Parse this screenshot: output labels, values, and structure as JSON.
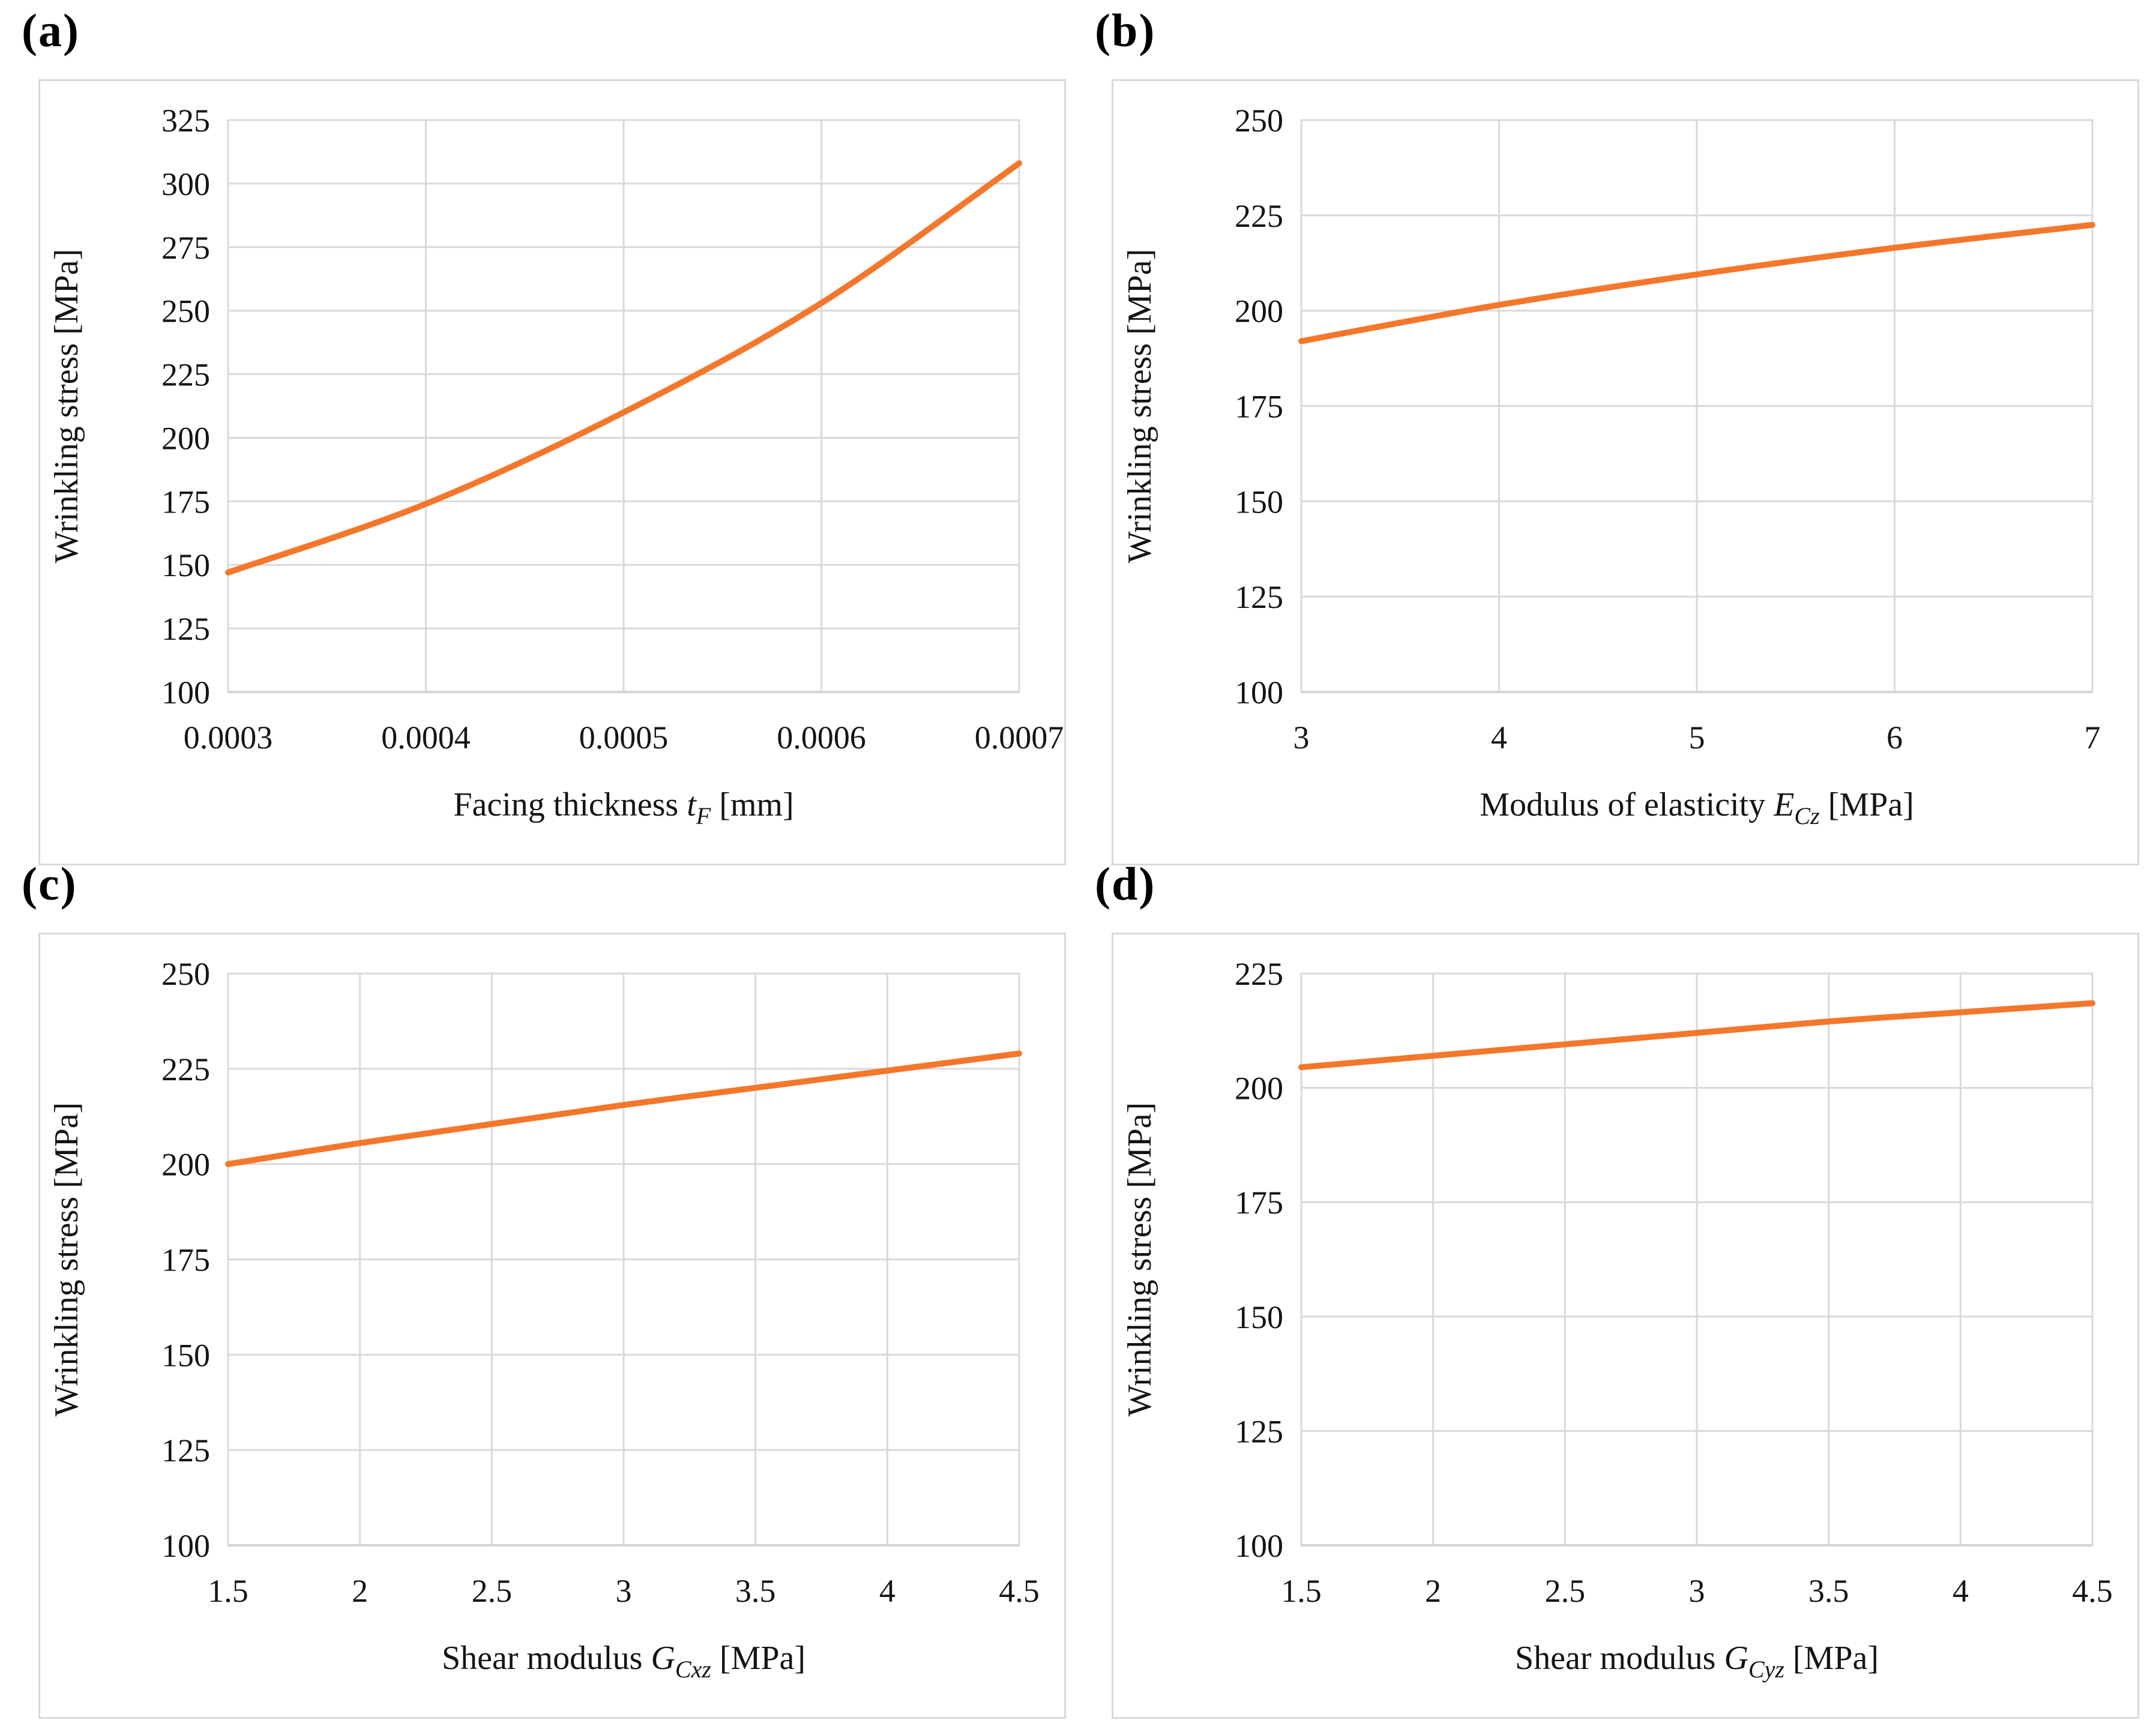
{
  "style": {
    "grid_color": "#D9D9D9",
    "axis_line_color": "#BFBFBF",
    "border_color": "#D9D9D9",
    "text_color": "#141414",
    "line_color": "#F4772B"
  },
  "chart_data": [
    {
      "type": "line",
      "panel_label": "(a)",
      "ylabel": "Wrinkling stress [MPa]",
      "xlabel": {
        "prefix": "Facing thickness ",
        "symbol": "t",
        "sub": "F",
        "suffix": " [mm]"
      },
      "x_tick_labels": [
        "0.0003",
        "0.0004",
        "0.0005",
        "0.0006",
        "0.0007"
      ],
      "x": [
        0.0003,
        0.0004,
        0.0005,
        0.0006,
        0.0007
      ],
      "series": [
        {
          "name": "Wrinkling stress",
          "values": [
            147,
            174,
            210,
            253,
            308
          ]
        }
      ],
      "ylim": [
        100,
        325
      ],
      "ystep": 25,
      "grid": true,
      "legend": "none"
    },
    {
      "type": "line",
      "panel_label": "(b)",
      "ylabel": "Wrinkling stress [MPa]",
      "xlabel": {
        "prefix": "Modulus of elasticity ",
        "symbol": "E",
        "sub": "Cz",
        "suffix": " [MPa]"
      },
      "x_tick_labels": [
        "3",
        "4",
        "5",
        "6",
        "7"
      ],
      "x": [
        3,
        4,
        5,
        6,
        7
      ],
      "series": [
        {
          "name": "Wrinkling stress",
          "values": [
            192,
            201.5,
            209.5,
            216.5,
            222.5
          ]
        }
      ],
      "ylim": [
        100,
        250
      ],
      "ystep": 25,
      "grid": true,
      "legend": "none"
    },
    {
      "type": "line",
      "panel_label": "(c)",
      "ylabel": "Wrinkling stress [MPa]",
      "xlabel": {
        "prefix": "Shear modulus ",
        "symbol": "G",
        "sub": "Cxz",
        "suffix": " [MPa]"
      },
      "x_tick_labels": [
        "1.5",
        "2",
        "2.5",
        "3",
        "3.5",
        "4",
        "4.5"
      ],
      "x": [
        1.5,
        2,
        2.5,
        3,
        3.5,
        4,
        4.5
      ],
      "series": [
        {
          "name": "Wrinkling stress",
          "values": [
            200,
            205.5,
            210.5,
            215.5,
            220,
            224.5,
            229
          ]
        }
      ],
      "ylim": [
        100,
        250
      ],
      "ystep": 25,
      "grid": true,
      "legend": "none"
    },
    {
      "type": "line",
      "panel_label": "(d)",
      "ylabel": "Wrinkling stress [MPa]",
      "xlabel": {
        "prefix": "Shear modulus ",
        "symbol": "G",
        "sub": "Cyz",
        "suffix": " [MPa]"
      },
      "x_tick_labels": [
        "1.5",
        "2",
        "2.5",
        "3",
        "3.5",
        "4",
        "4.5"
      ],
      "x": [
        1.5,
        2,
        2.5,
        3,
        3.5,
        4,
        4.5
      ],
      "series": [
        {
          "name": "Wrinkling stress",
          "values": [
            204.5,
            207,
            209.5,
            212,
            214.5,
            216.5,
            218.5
          ]
        }
      ],
      "ylim": [
        100,
        225
      ],
      "ystep": 25,
      "grid": true,
      "legend": "none"
    }
  ]
}
